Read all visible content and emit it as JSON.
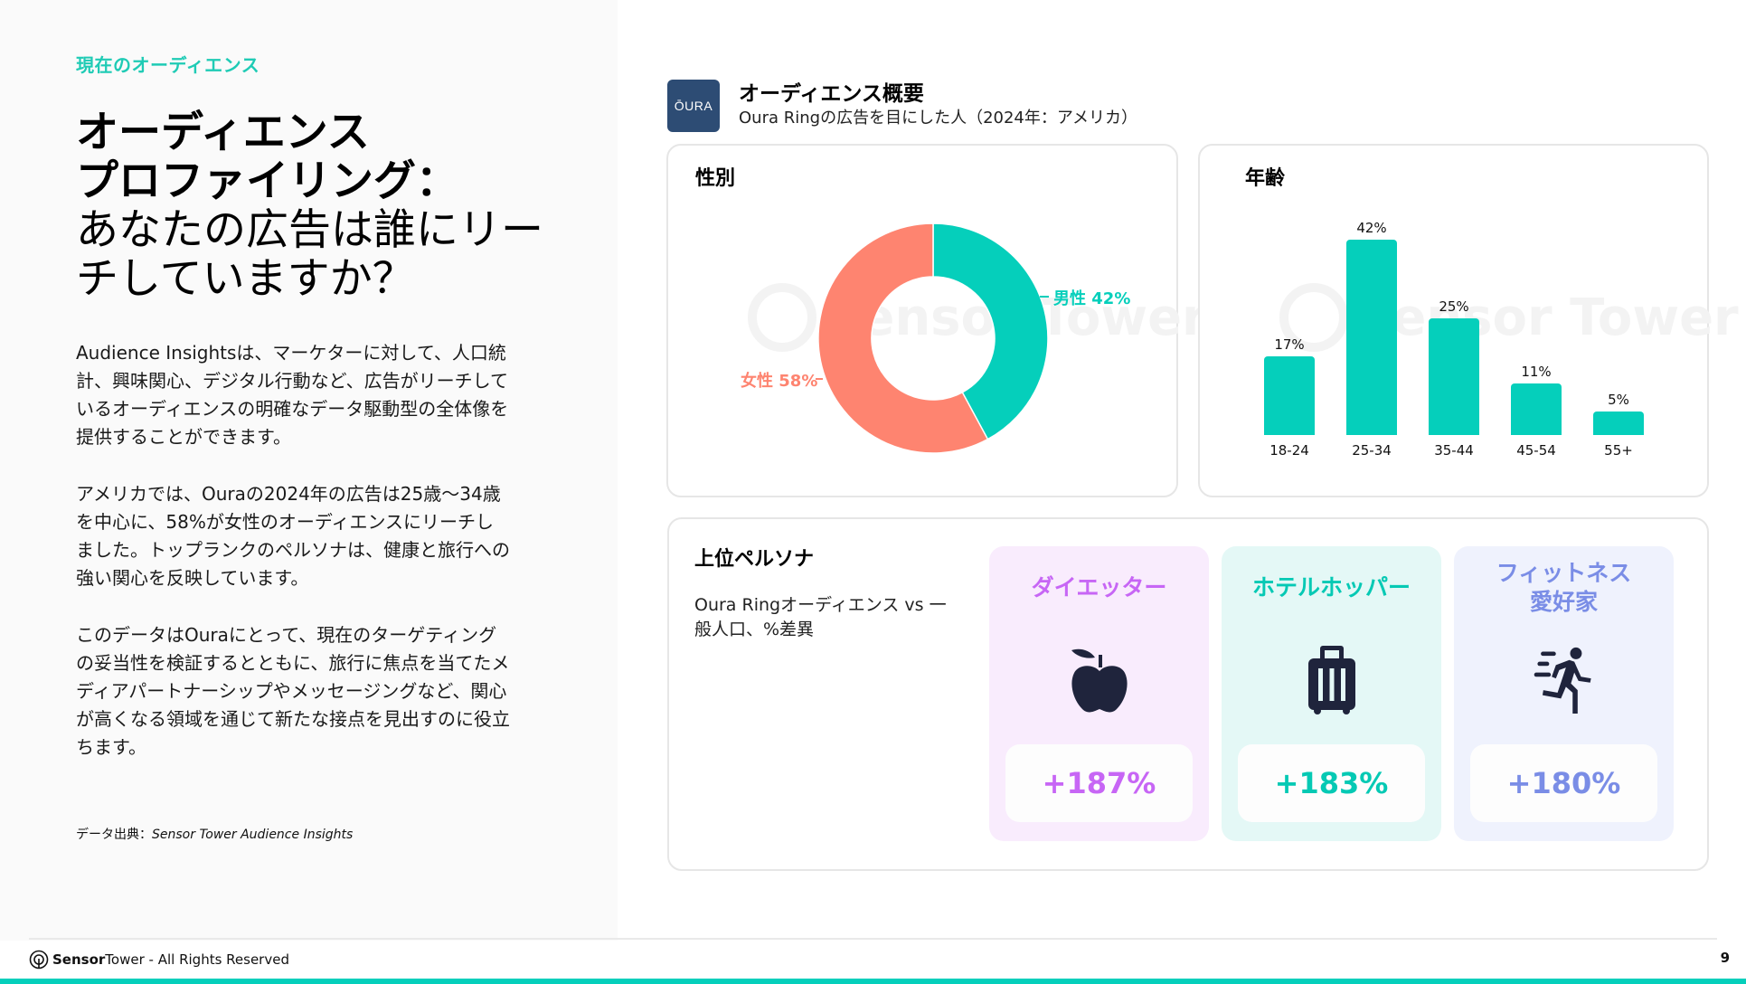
{
  "left": {
    "eyebrow": "現在のオーディエンス",
    "title_bold_1": "オーディエンス",
    "title_bold_2": "プロファイリング：",
    "title_light_1": "あなたの広告は誰にリー",
    "title_light_2": "チしていますか？",
    "paragraphs": [
      "Audience Insightsは、マーケターに対して、人口統計、興味関心、デジタル行動など、広告がリーチしているオーディエンスの明確なデータ駆動型の全体像を提供することができます。",
      "アメリカでは、Ouraの2024年の広告は25歳〜34歳を中心に、58%が女性のオーディエンスにリーチしました。トップランクのペルソナは、健康と旅行への強い関心を反映しています。",
      "このデータはOuraにとって、現在のターゲティングの妥当性を検証するとともに、旅行に焦点を当てたメディアパートナーシップやメッセージングなど、関心が高くなる領域を通じて新たな接点を見出すのに役立ちます。"
    ],
    "source_label": "データ出典：",
    "source_name": "Sensor Tower Audience Insights"
  },
  "header": {
    "logo_text": "ŌURA",
    "title": "オーディエンス概要",
    "subtitle": "Oura Ringの広告を目にした人（2024年：アメリカ）"
  },
  "gender": {
    "title": "性別",
    "watermark": "Sensor Tower",
    "male_label": "男性 42%",
    "female_label": "女性 58%"
  },
  "age": {
    "title": "年齢",
    "watermark": "Sensor Tower"
  },
  "personas": {
    "title": "上位ペルソナ",
    "subtitle": "Oura Ringオーディエンス vs 一般人口、%差異",
    "items": [
      {
        "name": "ダイエッター",
        "icon": "apple-icon",
        "value": "+187%",
        "color": "#c766f5",
        "bg": "#f9ecfd"
      },
      {
        "name": "ホテルホッパー",
        "icon": "suitcase-icon",
        "value": "+183%",
        "color": "#05c9b4",
        "bg": "#e4f8f6"
      },
      {
        "name": "フィットネス\n愛好家",
        "icon": "running-person-icon",
        "value": "+180%",
        "color": "#7a8de6",
        "bg": "#eff2fd"
      }
    ]
  },
  "footer": {
    "brand_bold": "Sensor",
    "brand_light": "Tower",
    "rights": " - All Rights Reserved",
    "page": "9"
  },
  "colors": {
    "accent": "#05cfbb",
    "female": "#fe8470",
    "male": "#05cfbb",
    "logo_bg": "#2d4c74"
  },
  "chart_data": [
    {
      "type": "pie",
      "title": "性別",
      "donut": true,
      "categories": [
        "男性",
        "女性"
      ],
      "values": [
        42,
        58
      ],
      "colors": [
        "#05cfbb",
        "#fe8470"
      ],
      "labels": [
        "男性 42%",
        "女性 58%"
      ]
    },
    {
      "type": "bar",
      "title": "年齢",
      "categories": [
        "18-24",
        "25-34",
        "35-44",
        "45-54",
        "55+"
      ],
      "values": [
        17,
        42,
        25,
        11,
        5
      ],
      "value_labels": [
        "17%",
        "42%",
        "25%",
        "11%",
        "5%"
      ],
      "xlabel": "",
      "ylabel": "",
      "ylim": [
        0,
        45
      ],
      "grid": false,
      "color": "#05cfbb"
    }
  ]
}
